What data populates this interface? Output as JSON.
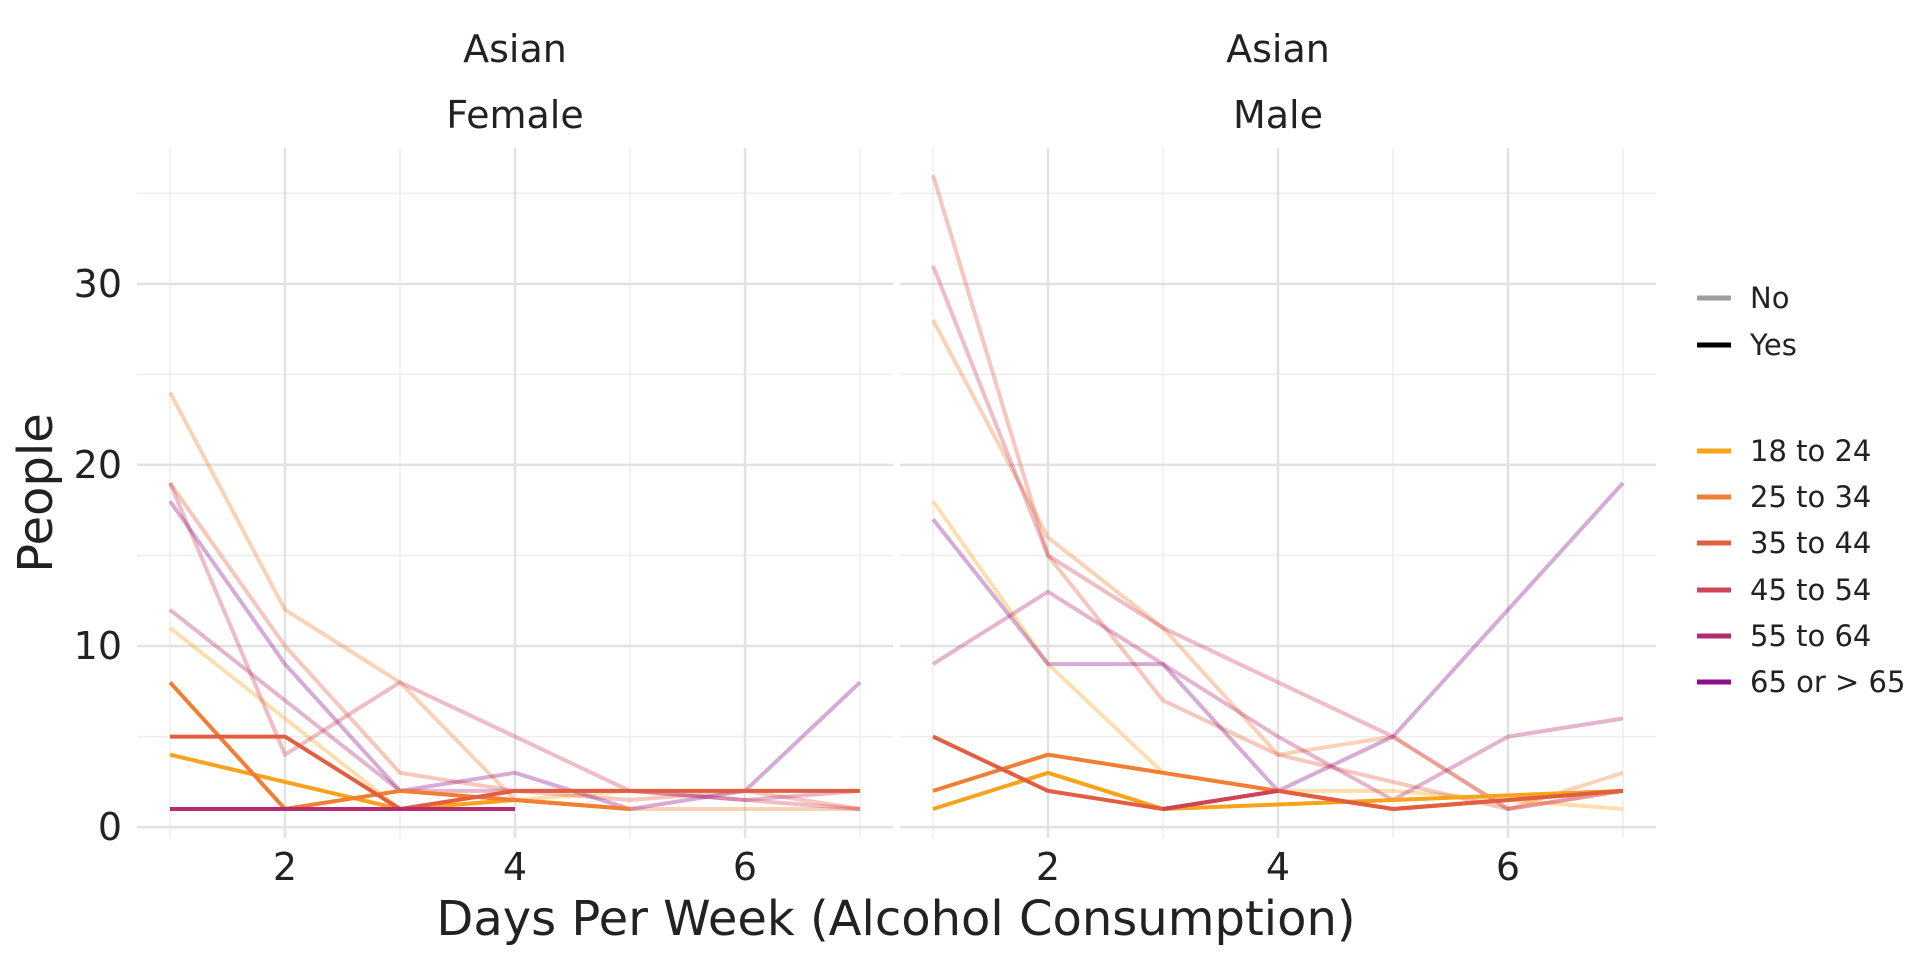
{
  "chart_data": {
    "type": "line",
    "xlabel": "Days Per Week (Alcohol Consumption)",
    "ylabel": "People",
    "x_ticks": [
      2,
      4,
      6
    ],
    "y_ticks": [
      0,
      10,
      20,
      30
    ],
    "xlim": [
      0.8,
      7.2
    ],
    "ylim": [
      -0.6,
      37.5
    ],
    "grid": true,
    "legend_position": "right",
    "legend_groups": [
      {
        "items": [
          {
            "label": "No",
            "color": "#9e9e9e"
          },
          {
            "label": "Yes",
            "color": "#000000"
          }
        ]
      },
      {
        "items": [
          {
            "label": "18 to 24",
            "color": "#f9a31b"
          },
          {
            "label": "25 to 34",
            "color": "#f07e33"
          },
          {
            "label": "35 to 44",
            "color": "#e15e41"
          },
          {
            "label": "45 to 54",
            "color": "#cd4358"
          },
          {
            "label": "55 to 64",
            "color": "#b52a70"
          },
          {
            "label": "65 or > 65",
            "color": "#8a0f88"
          }
        ]
      }
    ],
    "panels": [
      {
        "title_line1": "Asian",
        "title_line2": "Female",
        "series": [
          {
            "age": "18 to 24",
            "status": "No",
            "color": "#f9a31b",
            "x": [
              1,
              2,
              3,
              4,
              5
            ],
            "y": [
              11,
              6,
              1,
              1.5,
              2
            ]
          },
          {
            "age": "25 to 34",
            "status": "No",
            "color": "#f07e33",
            "x": [
              1,
              2,
              3,
              4,
              5,
              6,
              7
            ],
            "y": [
              24,
              12,
              8,
              1.5,
              1,
              1,
              1
            ]
          },
          {
            "age": "35 to 44",
            "status": "No",
            "color": "#e15e41",
            "x": [
              1,
              2,
              3,
              4,
              5,
              6,
              7
            ],
            "y": [
              19,
              10,
              3,
              2,
              1.5,
              2,
              1
            ]
          },
          {
            "age": "45 to 54",
            "status": "No",
            "color": "#cd4358",
            "x": [
              1,
              2,
              3,
              4,
              5,
              6,
              7
            ],
            "y": [
              19,
              4,
              8,
              5,
              2,
              1.5,
              1
            ]
          },
          {
            "age": "55 to 64",
            "status": "No",
            "color": "#b52a70",
            "x": [
              1,
              2,
              3,
              4,
              5,
              6,
              7
            ],
            "y": [
              12,
              7,
              2,
              2,
              2,
              1.5,
              2
            ]
          },
          {
            "age": "65 or > 65",
            "status": "No",
            "color": "#8a0f88",
            "x": [
              1,
              2,
              3,
              4,
              5,
              6,
              7
            ],
            "y": [
              18,
              9,
              2,
              3,
              1,
              2,
              8
            ]
          },
          {
            "age": "18 to 24",
            "status": "Yes",
            "color": "#f9a31b",
            "x": [
              1,
              2,
              3,
              4,
              5
            ],
            "y": [
              4,
              2.5,
              1,
              1.5,
              1
            ]
          },
          {
            "age": "25 to 34",
            "status": "Yes",
            "color": "#f07e33",
            "x": [
              1,
              2,
              3,
              4,
              5
            ],
            "y": [
              8,
              1,
              2,
              1.5,
              1
            ]
          },
          {
            "age": "35 to 44",
            "status": "Yes",
            "color": "#e15e41",
            "x": [
              1,
              2,
              3,
              4,
              5,
              6,
              7
            ],
            "y": [
              5,
              5,
              1,
              2,
              2,
              2,
              2
            ]
          },
          {
            "age": "55 to 64",
            "status": "Yes",
            "color": "#b52a70",
            "x": [
              1,
              2,
              3,
              4
            ],
            "y": [
              1,
              1,
              1,
              1
            ]
          }
        ]
      },
      {
        "title_line1": "Asian",
        "title_line2": "Male",
        "series": [
          {
            "age": "18 to 24",
            "status": "No",
            "color": "#f9a31b",
            "x": [
              1,
              2,
              3,
              4,
              5,
              6,
              7
            ],
            "y": [
              18,
              9,
              3,
              2,
              2,
              1.5,
              1
            ]
          },
          {
            "age": "25 to 34",
            "status": "No",
            "color": "#f07e33",
            "x": [
              1,
              2,
              3,
              4,
              5,
              6,
              7
            ],
            "y": [
              28,
              16,
              11,
              4,
              5,
              1,
              3
            ]
          },
          {
            "age": "35 to 44",
            "status": "No",
            "color": "#e15e41",
            "x": [
              1,
              2,
              3,
              4,
              5,
              6,
              7
            ],
            "y": [
              36,
              15,
              7,
              4,
              2.5,
              1,
              2
            ]
          },
          {
            "age": "45 to 54",
            "status": "No",
            "color": "#cd4358",
            "x": [
              1,
              2,
              3,
              4,
              5,
              6,
              7
            ],
            "y": [
              31,
              15,
              11,
              8,
              5,
              1,
              2
            ]
          },
          {
            "age": "55 to 64",
            "status": "No",
            "color": "#b52a70",
            "x": [
              1,
              2,
              3,
              4,
              5,
              6,
              7
            ],
            "y": [
              9,
              13,
              9,
              5,
              1.5,
              5,
              6
            ]
          },
          {
            "age": "65 or > 65",
            "status": "No",
            "color": "#8a0f88",
            "x": [
              1,
              2,
              3,
              4,
              5,
              6,
              7
            ],
            "y": [
              17,
              9,
              9,
              2,
              5,
              12,
              19
            ]
          },
          {
            "age": "18 to 24",
            "status": "Yes",
            "color": "#f9a31b",
            "x": [
              1,
              2,
              3,
              4,
              5,
              6,
              7
            ],
            "y": [
              1,
              3,
              1,
              1.25,
              1.5,
              1.75,
              2
            ]
          },
          {
            "age": "25 to 34",
            "status": "Yes",
            "color": "#f07e33",
            "x": [
              1,
              2,
              3,
              4,
              5,
              6,
              7
            ],
            "y": [
              2,
              4,
              3,
              2,
              1,
              1.5,
              2
            ]
          },
          {
            "age": "35 to 44",
            "status": "Yes",
            "color": "#e15e41",
            "x": [
              1,
              2,
              3,
              4,
              5,
              6,
              7
            ],
            "y": [
              5,
              2,
              1,
              2,
              1,
              1.5,
              2
            ]
          },
          {
            "age": "45 to 54",
            "status": "Yes",
            "color": "#cd4358",
            "x": [
              3,
              4
            ],
            "y": [
              1,
              2
            ]
          }
        ]
      }
    ]
  }
}
